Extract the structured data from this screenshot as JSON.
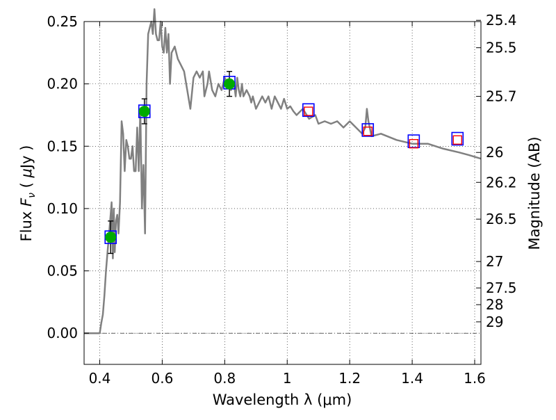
{
  "chart_data": {
    "type": "scatter",
    "xlabel": "Wavelength  λ (μm)",
    "ylabel": "Flux  F_ν  ( μJy )",
    "ylabel_parts": {
      "pre": "Flux  ",
      "sym": "F",
      "sub": "ν",
      "mid": "  ( ",
      "mu": "μ",
      "post": "Jy )"
    },
    "y2label": "Magnitude (AB)",
    "xlim": [
      0.35,
      1.62
    ],
    "ylim": [
      -0.025,
      0.25
    ],
    "grid": true,
    "colors": {
      "sed": "#808080",
      "detection": "#00aa00",
      "model_box": "#0000ff",
      "upper_box": "#ff0000",
      "errorbar": "#000000"
    },
    "x_ticks": [
      {
        "v": 0.4,
        "label": "0.4"
      },
      {
        "v": 0.6,
        "label": "0.6"
      },
      {
        "v": 0.8,
        "label": "0.8"
      },
      {
        "v": 1.0,
        "label": "1"
      },
      {
        "v": 1.2,
        "label": "1.2"
      },
      {
        "v": 1.4,
        "label": "1.4"
      },
      {
        "v": 1.6,
        "label": "1.6"
      }
    ],
    "y_ticks": [
      {
        "v": 0.0,
        "label": "0.00"
      },
      {
        "v": 0.05,
        "label": "0.05"
      },
      {
        "v": 0.1,
        "label": "0.10"
      },
      {
        "v": 0.15,
        "label": "0.15"
      },
      {
        "v": 0.2,
        "label": "0.20"
      },
      {
        "v": 0.25,
        "label": "0.25"
      }
    ],
    "mag_ticks": [
      {
        "v": 0.251,
        "label": "25.4"
      },
      {
        "v": 0.229,
        "label": "25.5"
      },
      {
        "v": 0.19,
        "label": "25.7"
      },
      {
        "v": 0.145,
        "label": "26"
      },
      {
        "v": 0.121,
        "label": "26.2"
      },
      {
        "v": 0.0915,
        "label": "26.5"
      },
      {
        "v": 0.0575,
        "label": "27"
      },
      {
        "v": 0.0363,
        "label": "27.5"
      },
      {
        "v": 0.0229,
        "label": "28"
      },
      {
        "v": 0.0091,
        "label": "29"
      }
    ],
    "sed_model": {
      "x": [
        0.35,
        0.4,
        0.405,
        0.41,
        0.415,
        0.42,
        0.425,
        0.43,
        0.435,
        0.438,
        0.442,
        0.445,
        0.448,
        0.452,
        0.456,
        0.46,
        0.465,
        0.47,
        0.475,
        0.48,
        0.485,
        0.49,
        0.495,
        0.5,
        0.505,
        0.51,
        0.515,
        0.52,
        0.525,
        0.53,
        0.535,
        0.54,
        0.545,
        0.55,
        0.555,
        0.56,
        0.565,
        0.57,
        0.575,
        0.58,
        0.585,
        0.59,
        0.595,
        0.6,
        0.605,
        0.61,
        0.615,
        0.62,
        0.625,
        0.63,
        0.64,
        0.65,
        0.66,
        0.67,
        0.68,
        0.69,
        0.7,
        0.71,
        0.72,
        0.73,
        0.735,
        0.74,
        0.745,
        0.75,
        0.76,
        0.77,
        0.78,
        0.79,
        0.8,
        0.81,
        0.82,
        0.83,
        0.835,
        0.84,
        0.845,
        0.85,
        0.855,
        0.86,
        0.87,
        0.88,
        0.885,
        0.89,
        0.9,
        0.91,
        0.92,
        0.93,
        0.94,
        0.95,
        0.96,
        0.97,
        0.98,
        0.99,
        1.0,
        1.01,
        1.02,
        1.03,
        1.05,
        1.07,
        1.09,
        1.1,
        1.12,
        1.14,
        1.16,
        1.18,
        1.2,
        1.22,
        1.24,
        1.25,
        1.255,
        1.26,
        1.27,
        1.3,
        1.35,
        1.4,
        1.45,
        1.5,
        1.55,
        1.58,
        1.62
      ],
      "y": [
        0.0,
        0.0,
        0.008,
        0.015,
        0.03,
        0.05,
        0.065,
        0.08,
        0.095,
        0.105,
        0.06,
        0.1,
        0.065,
        0.09,
        0.095,
        0.08,
        0.105,
        0.17,
        0.16,
        0.13,
        0.155,
        0.15,
        0.14,
        0.14,
        0.15,
        0.13,
        0.13,
        0.165,
        0.13,
        0.18,
        0.1,
        0.135,
        0.08,
        0.2,
        0.24,
        0.245,
        0.25,
        0.24,
        0.26,
        0.24,
        0.235,
        0.235,
        0.25,
        0.23,
        0.225,
        0.245,
        0.225,
        0.24,
        0.2,
        0.225,
        0.23,
        0.22,
        0.215,
        0.21,
        0.195,
        0.18,
        0.205,
        0.21,
        0.205,
        0.21,
        0.19,
        0.195,
        0.2,
        0.21,
        0.195,
        0.19,
        0.2,
        0.195,
        0.205,
        0.2,
        0.195,
        0.2,
        0.19,
        0.205,
        0.195,
        0.19,
        0.2,
        0.19,
        0.195,
        0.19,
        0.185,
        0.19,
        0.18,
        0.185,
        0.19,
        0.185,
        0.19,
        0.18,
        0.19,
        0.185,
        0.18,
        0.188,
        0.18,
        0.182,
        0.178,
        0.175,
        0.18,
        0.172,
        0.175,
        0.168,
        0.17,
        0.168,
        0.17,
        0.165,
        0.17,
        0.165,
        0.16,
        0.165,
        0.18,
        0.17,
        0.158,
        0.16,
        0.155,
        0.152,
        0.152,
        0.148,
        0.145,
        0.143,
        0.14
      ]
    },
    "detections": [
      {
        "x": 0.435,
        "y": 0.077,
        "err": 0.013
      },
      {
        "x": 0.543,
        "y": 0.178,
        "err": 0.01
      },
      {
        "x": 0.815,
        "y": 0.2,
        "err": 0.01
      }
    ],
    "model_boxes": [
      {
        "x": 0.435,
        "y": 0.077
      },
      {
        "x": 0.543,
        "y": 0.178
      },
      {
        "x": 0.815,
        "y": 0.201
      },
      {
        "x": 1.068,
        "y": 0.179
      },
      {
        "x": 1.258,
        "y": 0.163
      },
      {
        "x": 1.405,
        "y": 0.154
      },
      {
        "x": 1.545,
        "y": 0.156
      }
    ],
    "upper_boxes": [
      {
        "x": 1.068,
        "y": 0.178
      },
      {
        "x": 1.258,
        "y": 0.162
      },
      {
        "x": 1.405,
        "y": 0.152
      },
      {
        "x": 1.545,
        "y": 0.155
      }
    ]
  }
}
